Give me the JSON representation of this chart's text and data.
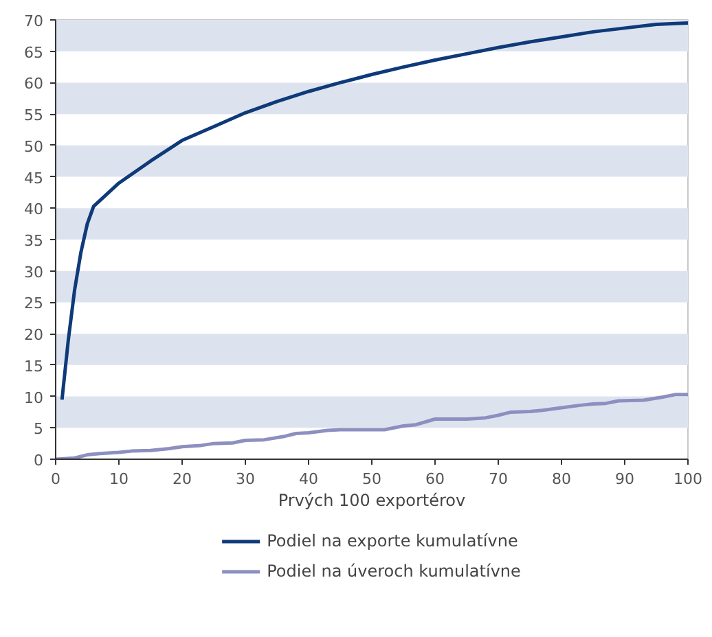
{
  "chart_data": {
    "type": "line",
    "xlabel": "Prvých 100 exportérov",
    "xlim": [
      0,
      100
    ],
    "xticks": [
      0,
      10,
      20,
      30,
      40,
      50,
      60,
      70,
      80,
      90,
      100
    ],
    "ylim": [
      0,
      70
    ],
    "yticks": [
      0,
      5,
      10,
      15,
      20,
      25,
      30,
      35,
      40,
      45,
      50,
      55,
      60,
      65,
      70
    ],
    "grid": false,
    "legend": "bottom",
    "marker": "none",
    "line_style": "solid",
    "bands": [
      {
        "axis": "y",
        "from": 5,
        "to": 10,
        "color": "#dde3ee"
      },
      {
        "axis": "y",
        "from": 15,
        "to": 20,
        "color": "#dde3ee"
      },
      {
        "axis": "y",
        "from": 25,
        "to": 30,
        "color": "#dde3ee"
      },
      {
        "axis": "y",
        "from": 35,
        "to": 40,
        "color": "#dde3ee"
      },
      {
        "axis": "y",
        "from": 45,
        "to": 50,
        "color": "#dde3ee"
      },
      {
        "axis": "y",
        "from": 55,
        "to": 60,
        "color": "#dde3ee"
      },
      {
        "axis": "y",
        "from": 65,
        "to": 70,
        "color": "#dde3ee"
      }
    ],
    "series": [
      {
        "name": "Podiel na exporte kumulatívne",
        "color": "#0f3a7a",
        "x": [
          1,
          2,
          3,
          4,
          5,
          6,
          10,
          15,
          20,
          25,
          30,
          35,
          40,
          45,
          50,
          55,
          60,
          65,
          70,
          75,
          80,
          85,
          90,
          95,
          100
        ],
        "values": [
          9.5,
          19,
          27,
          33,
          37.5,
          40.3,
          44,
          47.5,
          50.8,
          53,
          55.2,
          57,
          58.6,
          60,
          61.3,
          62.5,
          63.6,
          64.6,
          65.6,
          66.5,
          67.3,
          68.1,
          68.7,
          69.3,
          69.5
        ]
      },
      {
        "name": "Podiel na úveroch kumulatívne",
        "color": "#8c8fbf",
        "x": [
          0,
          3,
          5,
          7,
          10,
          12,
          15,
          18,
          20,
          23,
          25,
          28,
          30,
          33,
          36,
          38,
          40,
          43,
          45,
          50,
          52,
          55,
          57,
          60,
          65,
          68,
          70,
          72,
          75,
          77,
          80,
          83,
          85,
          87,
          89,
          93,
          96,
          98,
          100
        ],
        "values": [
          0,
          0.2,
          0.7,
          0.9,
          1.1,
          1.3,
          1.4,
          1.7,
          2.0,
          2.2,
          2.5,
          2.6,
          3.0,
          3.1,
          3.6,
          4.1,
          4.2,
          4.6,
          4.7,
          4.7,
          4.7,
          5.3,
          5.5,
          6.4,
          6.4,
          6.6,
          7.0,
          7.5,
          7.6,
          7.8,
          8.2,
          8.6,
          8.8,
          8.9,
          9.3,
          9.4,
          9.9,
          10.3,
          10.3
        ]
      }
    ]
  }
}
